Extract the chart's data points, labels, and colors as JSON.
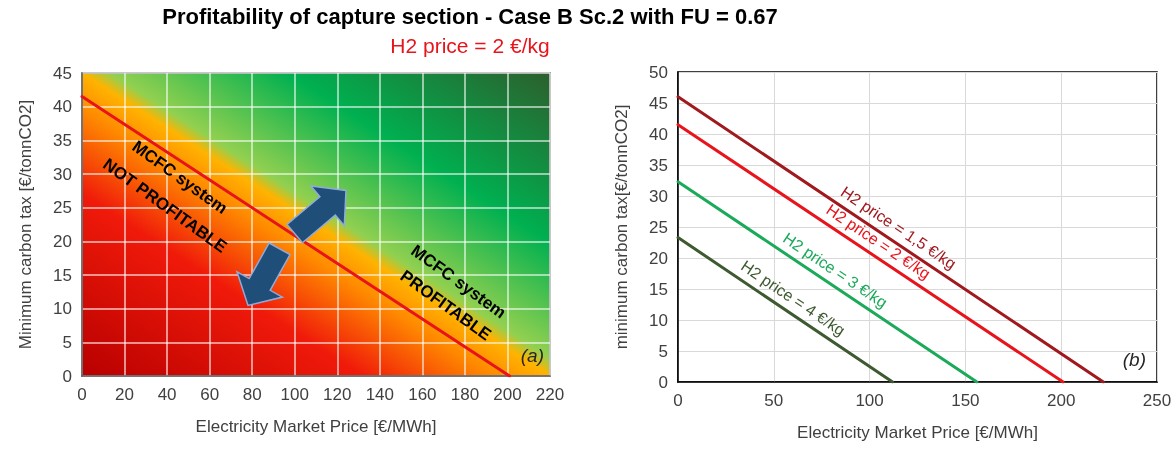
{
  "chart_data": [
    {
      "type": "line",
      "title": "Profitability of capture section - Case B Sc.2 with FU = 0.67",
      "subtitle": "H2 price = 2 €/kg",
      "xlabel": "Electricity Market Price [€/MWh]",
      "ylabel": "Minimum carbon tax [€/tonnCO2]",
      "series": [
        {
          "color": "#e8141c",
          "x": [
            0,
            201
          ],
          "values": [
            41.5,
            0
          ]
        }
      ],
      "xlim": [
        0,
        220
      ],
      "xticks": [
        0,
        20,
        40,
        60,
        80,
        100,
        120,
        140,
        160,
        180,
        200,
        220
      ],
      "ylim": [
        0,
        45
      ],
      "yticks": [
        0,
        5,
        10,
        15,
        20,
        25,
        30,
        35,
        40,
        45
      ],
      "grid": true,
      "legend": false,
      "marker": "none",
      "line_style": "solid",
      "annotations": [
        "MCFC system",
        "NOT PROFITABLE",
        "MCFC system",
        "PROFITABLE",
        "(a)"
      ]
    },
    {
      "type": "line",
      "xlabel": "Electricity Market Price [€/MWh]",
      "ylabel": "minimum carbon tax[€/tonnCO2]",
      "series": [
        {
          "name": "H2 price = 1,5 €/kg",
          "color": "#a0191e",
          "x": [
            0,
            222
          ],
          "values": [
            46,
            0
          ]
        },
        {
          "name": "H2 price = 2 €/kg",
          "color": "#e8141c",
          "x": [
            0,
            201
          ],
          "values": [
            41.5,
            0
          ]
        },
        {
          "name": "H2 price = 3 €/kg",
          "color": "#1aaa5a",
          "x": [
            0,
            156
          ],
          "values": [
            32.3,
            0
          ]
        },
        {
          "name": "H2 price = 4 €/kg",
          "color": "#3e5a30",
          "x": [
            0,
            112
          ],
          "values": [
            23.3,
            0
          ]
        }
      ],
      "xlim": [
        0,
        250
      ],
      "xticks": [
        0,
        50,
        100,
        150,
        200,
        250
      ],
      "ylim": [
        0,
        50
      ],
      "yticks": [
        0,
        5,
        10,
        15,
        20,
        25,
        30,
        35,
        40,
        45,
        50
      ],
      "grid": true,
      "legend": false,
      "marker": "none",
      "line_style": "solid",
      "annotations": [
        "(b)"
      ]
    }
  ]
}
